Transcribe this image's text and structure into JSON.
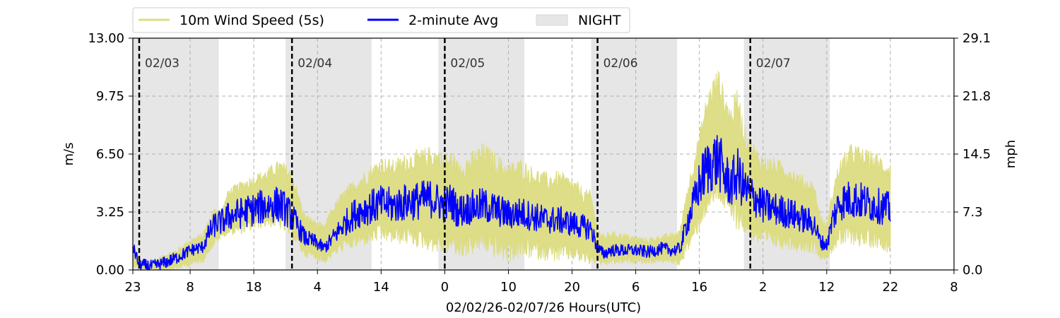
{
  "chart_data": {
    "type": "line",
    "xlabel": "02/02/26-02/07/26  Hours(UTC)",
    "ylabel": "m/s",
    "ylabel_right": "mph",
    "x_unit": "hours since 02/02 00:00 UTC",
    "xlim": [
      23,
      152
    ],
    "ylim": [
      0,
      13
    ],
    "ylim_right": [
      0,
      29.1
    ],
    "grid": true,
    "legend_position": "top-left (above plot)",
    "x_ticks": [
      {
        "x": 23,
        "label": "23"
      },
      {
        "x": 32,
        "label": "8"
      },
      {
        "x": 42,
        "label": "18"
      },
      {
        "x": 52,
        "label": "4"
      },
      {
        "x": 62,
        "label": "14"
      },
      {
        "x": 72,
        "label": "0"
      },
      {
        "x": 82,
        "label": "10"
      },
      {
        "x": 92,
        "label": "20"
      },
      {
        "x": 102,
        "label": "6"
      },
      {
        "x": 112,
        "label": "16"
      },
      {
        "x": 122,
        "label": "2"
      },
      {
        "x": 132,
        "label": "12"
      },
      {
        "x": 142,
        "label": "22"
      },
      {
        "x": 152,
        "label": "8"
      }
    ],
    "y_ticks": [
      {
        "y": 0,
        "label": "0.00"
      },
      {
        "y": 3.25,
        "label": "3.25"
      },
      {
        "y": 6.5,
        "label": "6.50"
      },
      {
        "y": 9.75,
        "label": "9.75"
      },
      {
        "y": 13,
        "label": "13.00"
      }
    ],
    "y_ticks_right": [
      {
        "y": 0,
        "label": "0.0"
      },
      {
        "y": 3.25,
        "label": "7.3"
      },
      {
        "y": 6.5,
        "label": "14.5"
      },
      {
        "y": 9.75,
        "label": "21.8"
      },
      {
        "y": 13,
        "label": "29.1"
      }
    ],
    "night_spans": [
      [
        23,
        36.5
      ],
      [
        47,
        60.5
      ],
      [
        71,
        84.5
      ],
      [
        95,
        108.5
      ],
      [
        119,
        132.5
      ]
    ],
    "day_markers": [
      {
        "x": 24,
        "label": "02/03"
      },
      {
        "x": 48,
        "label": "02/04"
      },
      {
        "x": 72,
        "label": "02/05"
      },
      {
        "x": 96,
        "label": "02/06"
      },
      {
        "x": 120,
        "label": "02/07"
      }
    ],
    "series": [
      {
        "name": "10m Wind Speed (5s)",
        "color": "#dcdc82",
        "x": [
          23,
          24,
          26,
          28,
          30,
          32,
          34,
          35,
          36,
          37,
          38,
          40,
          42,
          44,
          46,
          47,
          48,
          49,
          50,
          52,
          53,
          54,
          56,
          58,
          60,
          62,
          64,
          66,
          68,
          70,
          71,
          72,
          73,
          74,
          76,
          78,
          80,
          82,
          84,
          86,
          88,
          90,
          92,
          94,
          95,
          96,
          97,
          98,
          100,
          102,
          104,
          106,
          108,
          109,
          110,
          111,
          112,
          113,
          114,
          115,
          116,
          117,
          118,
          119,
          120,
          121,
          122,
          124,
          126,
          128,
          130,
          131,
          132,
          133,
          134,
          136,
          138,
          140,
          142
        ],
        "upper": [
          1.5,
          0.6,
          0.5,
          0.9,
          1.2,
          1.8,
          2.1,
          3.0,
          3.6,
          3.4,
          4.6,
          5.0,
          5.4,
          5.7,
          6.2,
          6.0,
          5.6,
          4.4,
          3.2,
          2.8,
          2.5,
          3.4,
          4.5,
          5.2,
          5.8,
          6.4,
          6.2,
          6.6,
          6.8,
          7.0,
          6.9,
          6.5,
          6.8,
          6.2,
          6.6,
          7.2,
          6.6,
          6.1,
          6.3,
          5.8,
          5.5,
          5.6,
          5.2,
          4.6,
          4.5,
          2.4,
          2.0,
          2.2,
          2.1,
          1.9,
          1.8,
          2.0,
          2.1,
          2.4,
          4.6,
          6.3,
          7.8,
          9.6,
          10.8,
          11.4,
          10.0,
          9.2,
          10.4,
          8.2,
          7.6,
          6.9,
          6.5,
          6.3,
          6.0,
          5.4,
          5.0,
          3.2,
          2.6,
          4.8,
          6.2,
          7.2,
          6.8,
          6.6,
          6.1
        ],
        "lower": [
          0.2,
          0.0,
          0.0,
          0.0,
          0.0,
          0.2,
          0.4,
          1.0,
          1.4,
          1.8,
          1.9,
          2.0,
          2.2,
          2.4,
          2.3,
          2.0,
          1.7,
          1.2,
          0.7,
          0.5,
          0.3,
          0.6,
          1.0,
          1.2,
          1.4,
          1.6,
          1.4,
          1.4,
          1.2,
          1.0,
          0.9,
          0.8,
          1.0,
          0.6,
          0.8,
          1.0,
          0.6,
          0.4,
          0.6,
          0.6,
          0.5,
          0.4,
          0.5,
          0.3,
          0.2,
          0.4,
          0.1,
          0.3,
          0.3,
          0.4,
          0.3,
          0.4,
          0.3,
          0.2,
          0.9,
          1.4,
          2.2,
          3.0,
          3.4,
          3.8,
          3.2,
          2.6,
          2.2,
          2.0,
          1.6,
          1.4,
          1.2,
          1.2,
          1.1,
          1.0,
          0.9,
          0.6,
          0.5,
          1.0,
          1.2,
          1.4,
          1.2,
          1.2,
          0.9
        ]
      },
      {
        "name": "2-minute Avg",
        "color": "#0000ff",
        "x": [
          23,
          24,
          26,
          28,
          30,
          32,
          34,
          35,
          36,
          37,
          38,
          40,
          42,
          44,
          46,
          47,
          48,
          49,
          50,
          52,
          53,
          54,
          56,
          58,
          60,
          62,
          64,
          66,
          68,
          70,
          71,
          72,
          73,
          74,
          76,
          78,
          80,
          82,
          84,
          86,
          88,
          90,
          92,
          94,
          95,
          96,
          97,
          98,
          100,
          102,
          104,
          106,
          108,
          109,
          110,
          111,
          112,
          113,
          114,
          115,
          116,
          117,
          118,
          119,
          120,
          121,
          122,
          124,
          126,
          128,
          130,
          131,
          132,
          133,
          134,
          136,
          138,
          140,
          142
        ],
        "y": [
          1.3,
          0.3,
          0.2,
          0.4,
          0.7,
          1.1,
          1.3,
          2.1,
          2.6,
          2.7,
          3.0,
          3.2,
          3.4,
          3.6,
          3.7,
          3.4,
          3.0,
          2.4,
          1.8,
          1.5,
          1.2,
          1.6,
          2.5,
          3.2,
          3.5,
          3.7,
          3.6,
          3.8,
          3.9,
          4.0,
          3.8,
          3.6,
          3.9,
          3.3,
          3.5,
          3.6,
          3.4,
          3.1,
          3.2,
          3.0,
          2.8,
          2.8,
          2.6,
          2.4,
          2.3,
          1.2,
          0.9,
          1.1,
          1.1,
          1.1,
          1.0,
          1.2,
          1.1,
          1.2,
          2.6,
          3.6,
          4.8,
          5.6,
          6.0,
          6.2,
          5.2,
          4.8,
          5.4,
          4.6,
          4.2,
          4.0,
          3.6,
          3.4,
          3.2,
          2.9,
          2.6,
          1.6,
          1.4,
          2.9,
          3.8,
          4.0,
          3.8,
          3.6,
          3.4
        ]
      },
      {
        "name": "NIGHT",
        "color": "#e6e6e6"
      }
    ]
  }
}
